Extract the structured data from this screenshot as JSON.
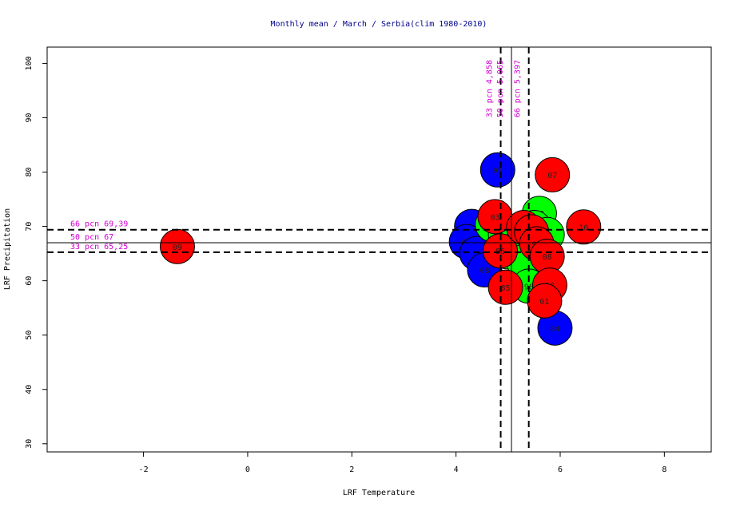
{
  "chart_data": {
    "type": "scatter",
    "title": "Monthly mean / March / Serbia(clim 1980-2010)",
    "xlabel": "LRF Temperature",
    "ylabel": "LRF Precipitation",
    "xlim": [
      -3.85,
      8.9
    ],
    "ylim": [
      28.5,
      103
    ],
    "xticks": [
      -2,
      0,
      2,
      4,
      6,
      8
    ],
    "yticks": [
      30,
      40,
      50,
      60,
      70,
      80,
      90,
      100
    ],
    "colors": {
      "blue": "#0000ff",
      "green": "#00ff00",
      "red": "#ff0000"
    },
    "vlines": [
      {
        "x": 4.858,
        "style": "dashed",
        "label": "33 pcn 4,858"
      },
      {
        "x": 5.065,
        "style": "solid",
        "label": "50 pcn 5,065"
      },
      {
        "x": 5.397,
        "style": "dashed",
        "label": "66 pcn 5,397"
      }
    ],
    "hlines": [
      {
        "y": 69.39,
        "style": "dashed",
        "label": "66 pcn 69,39"
      },
      {
        "y": 67,
        "style": "solid",
        "label": "50 pcn 67"
      },
      {
        "y": 65.25,
        "style": "dashed",
        "label": "33 pcn 65,25"
      }
    ],
    "points": [
      {
        "x": 4.3,
        "y": 70.0,
        "label": "",
        "color": "blue"
      },
      {
        "x": 4.2,
        "y": 67.2,
        "label": "05",
        "color": "blue"
      },
      {
        "x": 4.4,
        "y": 65.0,
        "label": "",
        "color": "blue"
      },
      {
        "x": 4.55,
        "y": 62.0,
        "label": "08",
        "color": "blue"
      },
      {
        "x": 4.8,
        "y": 80.4,
        "label": "97",
        "color": "blue"
      },
      {
        "x": 5.9,
        "y": 51.3,
        "label": "84",
        "color": "blue"
      },
      {
        "x": 4.7,
        "y": 70.3,
        "label": "03",
        "color": "green"
      },
      {
        "x": 4.95,
        "y": 68.5,
        "label": "",
        "color": "green"
      },
      {
        "x": 5.1,
        "y": 66.5,
        "label": "",
        "color": "green"
      },
      {
        "x": 5.0,
        "y": 65.3,
        "label": "",
        "color": "green"
      },
      {
        "x": 5.3,
        "y": 63.5,
        "label": "",
        "color": "green"
      },
      {
        "x": 5.4,
        "y": 59.0,
        "label": "98",
        "color": "green"
      },
      {
        "x": 5.6,
        "y": 72.4,
        "label": "88",
        "color": "green"
      },
      {
        "x": 5.5,
        "y": 69.8,
        "label": "96",
        "color": "green"
      },
      {
        "x": 5.75,
        "y": 68.5,
        "label": "92",
        "color": "green"
      },
      {
        "x": -1.35,
        "y": 66.3,
        "label": "09",
        "color": "red"
      },
      {
        "x": 4.75,
        "y": 71.8,
        "label": "03",
        "color": "red"
      },
      {
        "x": 4.85,
        "y": 65.5,
        "label": "86",
        "color": "red"
      },
      {
        "x": 4.95,
        "y": 58.8,
        "label": "85",
        "color": "red"
      },
      {
        "x": 5.3,
        "y": 69.8,
        "label": "99",
        "color": "red"
      },
      {
        "x": 5.45,
        "y": 69.0,
        "label": "",
        "color": "red"
      },
      {
        "x": 5.55,
        "y": 66.8,
        "label": "91",
        "color": "red"
      },
      {
        "x": 5.75,
        "y": 64.5,
        "label": "08",
        "color": "red"
      },
      {
        "x": 5.8,
        "y": 59.2,
        "label": "02",
        "color": "red"
      },
      {
        "x": 5.7,
        "y": 56.3,
        "label": "01",
        "color": "red"
      },
      {
        "x": 5.85,
        "y": 79.5,
        "label": "07",
        "color": "red"
      },
      {
        "x": 6.45,
        "y": 69.9,
        "label": "10",
        "color": "red"
      }
    ]
  }
}
